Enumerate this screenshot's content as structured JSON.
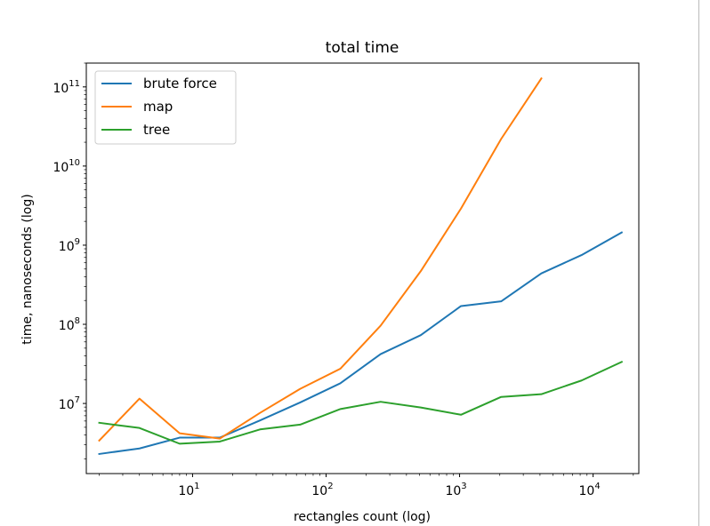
{
  "chart_data": {
    "type": "line",
    "title": "total time",
    "xlabel": "rectangles count (log)",
    "ylabel": "time, nanoseconds (log)",
    "xscale": "log",
    "yscale": "log",
    "xlim": [
      1.6,
      22000
    ],
    "ylim": [
      1300000,
      200000000000
    ],
    "grid": false,
    "legend_position": "top-left",
    "x_ticks": [
      {
        "value": 10,
        "base": "10",
        "exp": "1"
      },
      {
        "value": 100,
        "base": "10",
        "exp": "2"
      },
      {
        "value": 1000,
        "base": "10",
        "exp": "3"
      },
      {
        "value": 10000,
        "base": "10",
        "exp": "4"
      }
    ],
    "y_ticks": [
      {
        "value": 10000000,
        "base": "10",
        "exp": "7"
      },
      {
        "value": 100000000,
        "base": "10",
        "exp": "8"
      },
      {
        "value": 1000000000,
        "base": "10",
        "exp": "9"
      },
      {
        "value": 10000000000,
        "base": "10",
        "exp": "10"
      },
      {
        "value": 100000000000,
        "base": "10",
        "exp": "11"
      }
    ],
    "x": [
      2,
      4,
      8,
      16,
      32,
      64,
      128,
      256,
      512,
      1024,
      2048,
      4096,
      8192,
      16384
    ],
    "series": [
      {
        "name": "brute force",
        "color": "#1f77b4",
        "values": [
          2300000,
          2700000,
          3700000,
          3700000,
          6100000,
          10300000,
          18000000,
          42000000,
          73000000,
          170000000,
          195000000,
          440000000,
          750000000,
          1450000000
        ]
      },
      {
        "name": "map",
        "color": "#ff7f0e",
        "values": [
          3400000,
          11500000,
          4200000,
          3600000,
          7600000,
          15300000,
          27500000,
          96000000,
          470000000,
          2900000000,
          22000000000,
          128000000000,
          null,
          null
        ]
      },
      {
        "name": "tree",
        "color": "#2ca02c",
        "values": [
          5700000,
          4900000,
          3100000,
          3300000,
          4700000,
          5400000,
          8500000,
          10500000,
          8900000,
          7200000,
          12100000,
          13100000,
          19500000,
          33500000
        ]
      }
    ]
  }
}
